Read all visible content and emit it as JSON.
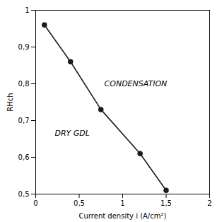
{
  "chart_data": {
    "type": "line",
    "x": [
      0.1,
      0.4,
      0.75,
      1.2,
      1.5
    ],
    "values": [
      0.96,
      0.86,
      0.73,
      0.61,
      0.51
    ],
    "xlabel": "Current density i (A/cm²)",
    "ylabel": "RHch",
    "xlim": [
      0,
      2
    ],
    "ylim": [
      0.5,
      1
    ],
    "xticks": [
      0,
      {
        "value": 0.5,
        "label": "0,5"
      },
      1,
      {
        "value": 1.5,
        "label": "1,5"
      },
      2
    ],
    "yticks": [
      {
        "value": 0.5,
        "label": "0,5"
      },
      {
        "value": 0.6,
        "label": "0,6"
      },
      {
        "value": 0.7,
        "label": "0,7"
      },
      {
        "value": 0.8,
        "label": "0,8"
      },
      {
        "value": 0.9,
        "label": "0,9"
      },
      1
    ],
    "color": "#1a1a1a",
    "marker": "circle",
    "grid": false,
    "annotations": [
      {
        "text": "CONDENSATION",
        "x": 1.15,
        "y": 0.8
      },
      {
        "text": "DRY GDL",
        "x": 0.42,
        "y": 0.665
      }
    ]
  }
}
